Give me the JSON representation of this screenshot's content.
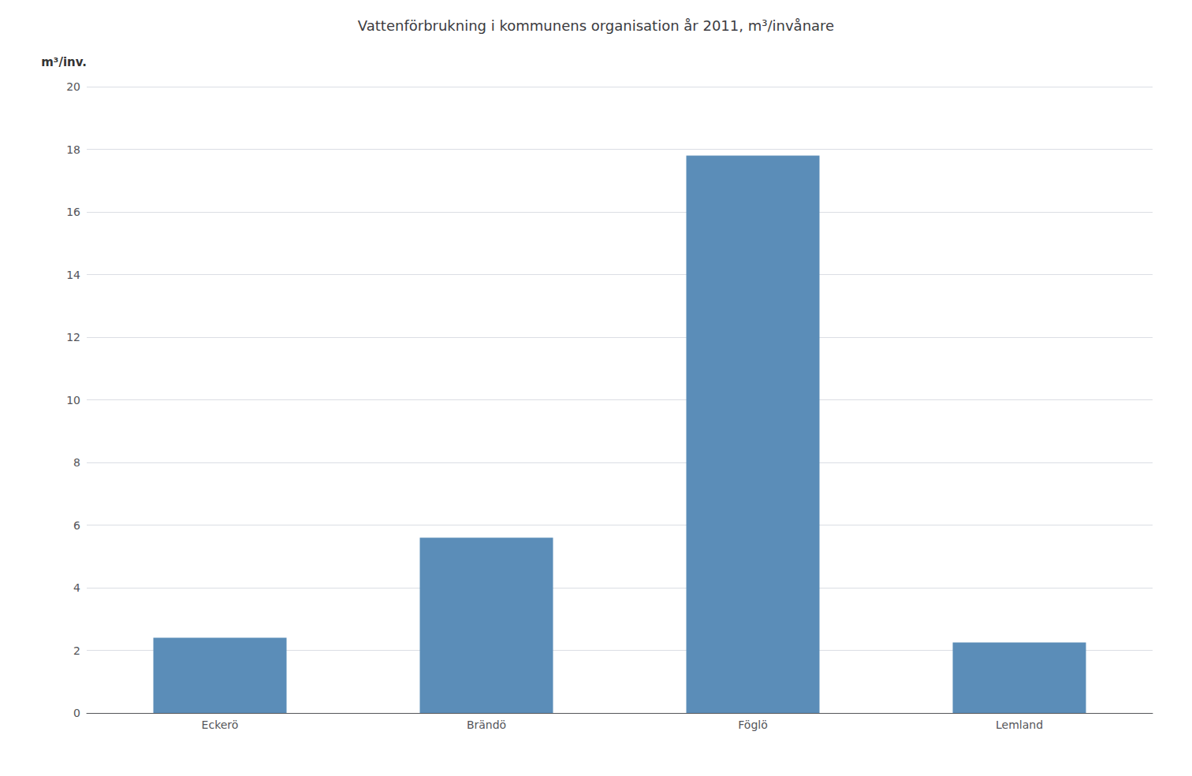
{
  "chart_data": {
    "type": "bar",
    "title": "Vattenförbrukning i kommunens organisation år 2011, m³/invånare",
    "ylabel": "m³/inv.",
    "categories": [
      "Eckerö",
      "Brändö",
      "Föglö",
      "Lemland"
    ],
    "values": [
      2.4,
      5.6,
      17.8,
      2.25
    ],
    "color": "#5b8db8",
    "ylim": [
      0,
      20
    ],
    "yticks": [
      0,
      2,
      4,
      6,
      8,
      10,
      12,
      14,
      16,
      18,
      20
    ],
    "grid": true
  }
}
